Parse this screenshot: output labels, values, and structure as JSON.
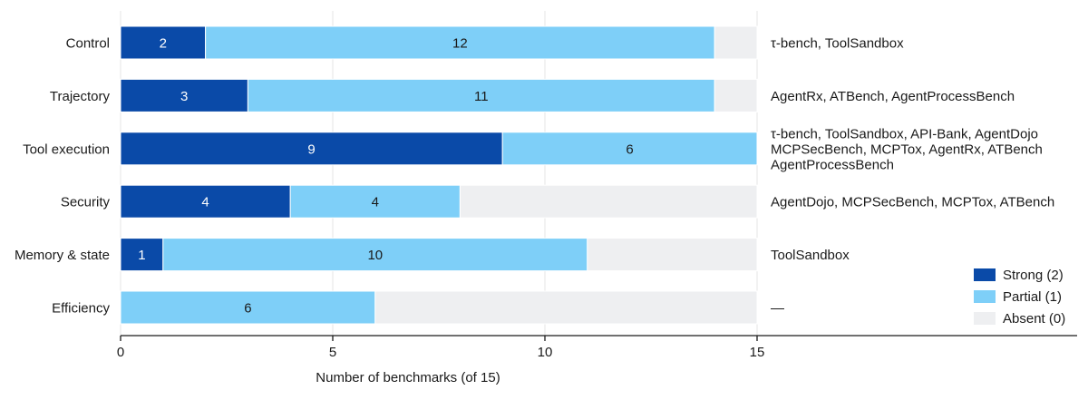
{
  "chart_data": {
    "type": "bar",
    "orientation": "horizontal",
    "stacked": true,
    "title": "",
    "xlabel": "Number of benchmarks (of 15)",
    "ylabel": "",
    "xlim": [
      0,
      15
    ],
    "xticks": [
      "0",
      "5",
      "10",
      "15"
    ],
    "grid": true,
    "legend_position": "bottom-right",
    "categories": [
      "Control",
      "Trajectory",
      "Tool execution",
      "Security",
      "Memory & state",
      "Efficiency"
    ],
    "series": [
      {
        "name": "Strong (2)",
        "color": "#0a4aa8",
        "values": [
          2,
          3,
          9,
          4,
          1,
          0
        ]
      },
      {
        "name": "Partial (1)",
        "color": "#7ecff8",
        "values": [
          12,
          11,
          6,
          4,
          10,
          6
        ]
      },
      {
        "name": "Absent (0)",
        "color": "#eeeff1",
        "values": [
          1,
          1,
          0,
          7,
          4,
          9
        ]
      }
    ],
    "annotations": [
      [
        "τ-bench, ToolSandbox"
      ],
      [
        "AgentRx, ATBench, AgentProcessBench"
      ],
      [
        "τ-bench, ToolSandbox, API-Bank, AgentDojo",
        "MCPSecBench, MCPTox, AgentRx, ATBench",
        "AgentProcessBench"
      ],
      [
        "AgentDojo, MCPSecBench, MCPTox, ATBench"
      ],
      [
        "ToolSandbox"
      ],
      [
        "—"
      ]
    ]
  }
}
